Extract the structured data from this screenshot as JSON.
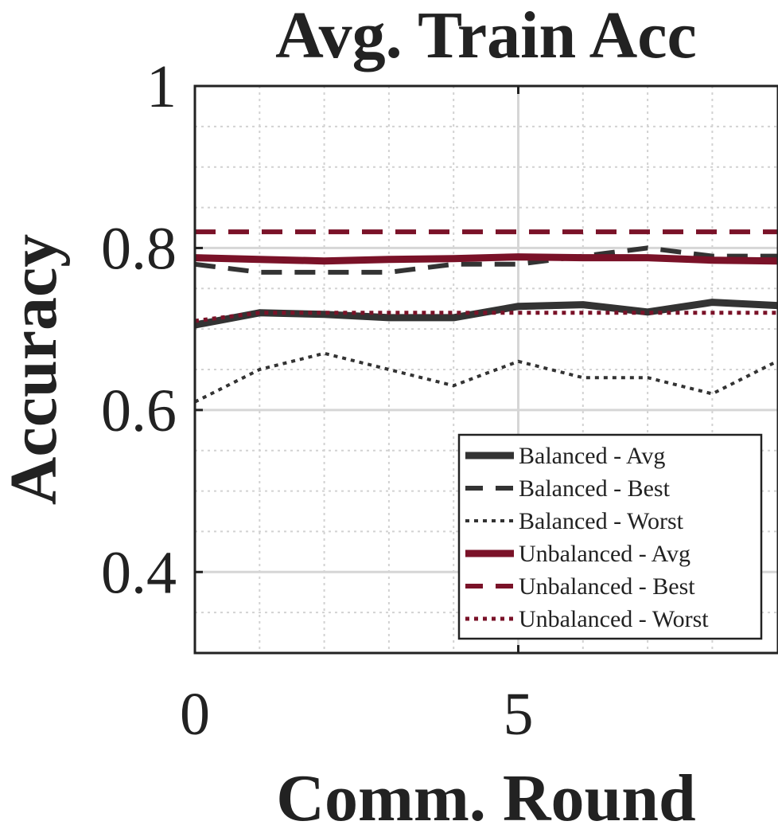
{
  "chart_data": {
    "type": "line",
    "title": "Avg. Train Acc",
    "xlabel": "Comm. Round",
    "ylabel": "Accuracy",
    "xlim": [
      0,
      9
    ],
    "ylim": [
      0.3,
      1.0
    ],
    "x_ticks": [
      0,
      5
    ],
    "y_ticks": [
      0.4,
      0.6,
      0.8,
      1.0
    ],
    "y_tick_labels": [
      "0.4",
      "0.6",
      "0.8",
      "1"
    ],
    "x_tick_labels": [
      "0",
      "5"
    ],
    "grid": true,
    "minor_grid": true,
    "legend_position": "bottom-right",
    "x": [
      0,
      1,
      2,
      3,
      4,
      5,
      6,
      7,
      8,
      9
    ],
    "series": [
      {
        "name": "Balanced - Avg",
        "color": "#333333",
        "style": "solid",
        "width": 9,
        "values": [
          0.705,
          0.72,
          0.718,
          0.714,
          0.714,
          0.728,
          0.73,
          0.721,
          0.733,
          0.729
        ]
      },
      {
        "name": "Balanced - Best",
        "color": "#333333",
        "style": "dashed",
        "width": 6,
        "values": [
          0.78,
          0.77,
          0.77,
          0.77,
          0.78,
          0.78,
          0.79,
          0.8,
          0.79,
          0.79
        ]
      },
      {
        "name": "Balanced - Worst",
        "color": "#333333",
        "style": "dotted",
        "width": 4,
        "values": [
          0.61,
          0.65,
          0.67,
          0.65,
          0.63,
          0.66,
          0.64,
          0.64,
          0.62,
          0.66
        ]
      },
      {
        "name": "Unbalanced - Avg",
        "color": "#7a1228",
        "style": "solid",
        "width": 9,
        "values": [
          0.788,
          0.786,
          0.784,
          0.786,
          0.787,
          0.789,
          0.788,
          0.788,
          0.785,
          0.784
        ]
      },
      {
        "name": "Unbalanced - Best",
        "color": "#7a1228",
        "style": "dashed",
        "width": 6,
        "values": [
          0.82,
          0.82,
          0.82,
          0.82,
          0.82,
          0.82,
          0.82,
          0.82,
          0.82,
          0.82
        ]
      },
      {
        "name": "Unbalanced - Worst",
        "color": "#7a1228",
        "style": "dotted",
        "width": 5,
        "values": [
          0.71,
          0.72,
          0.72,
          0.72,
          0.72,
          0.72,
          0.72,
          0.72,
          0.72,
          0.72
        ]
      }
    ]
  }
}
